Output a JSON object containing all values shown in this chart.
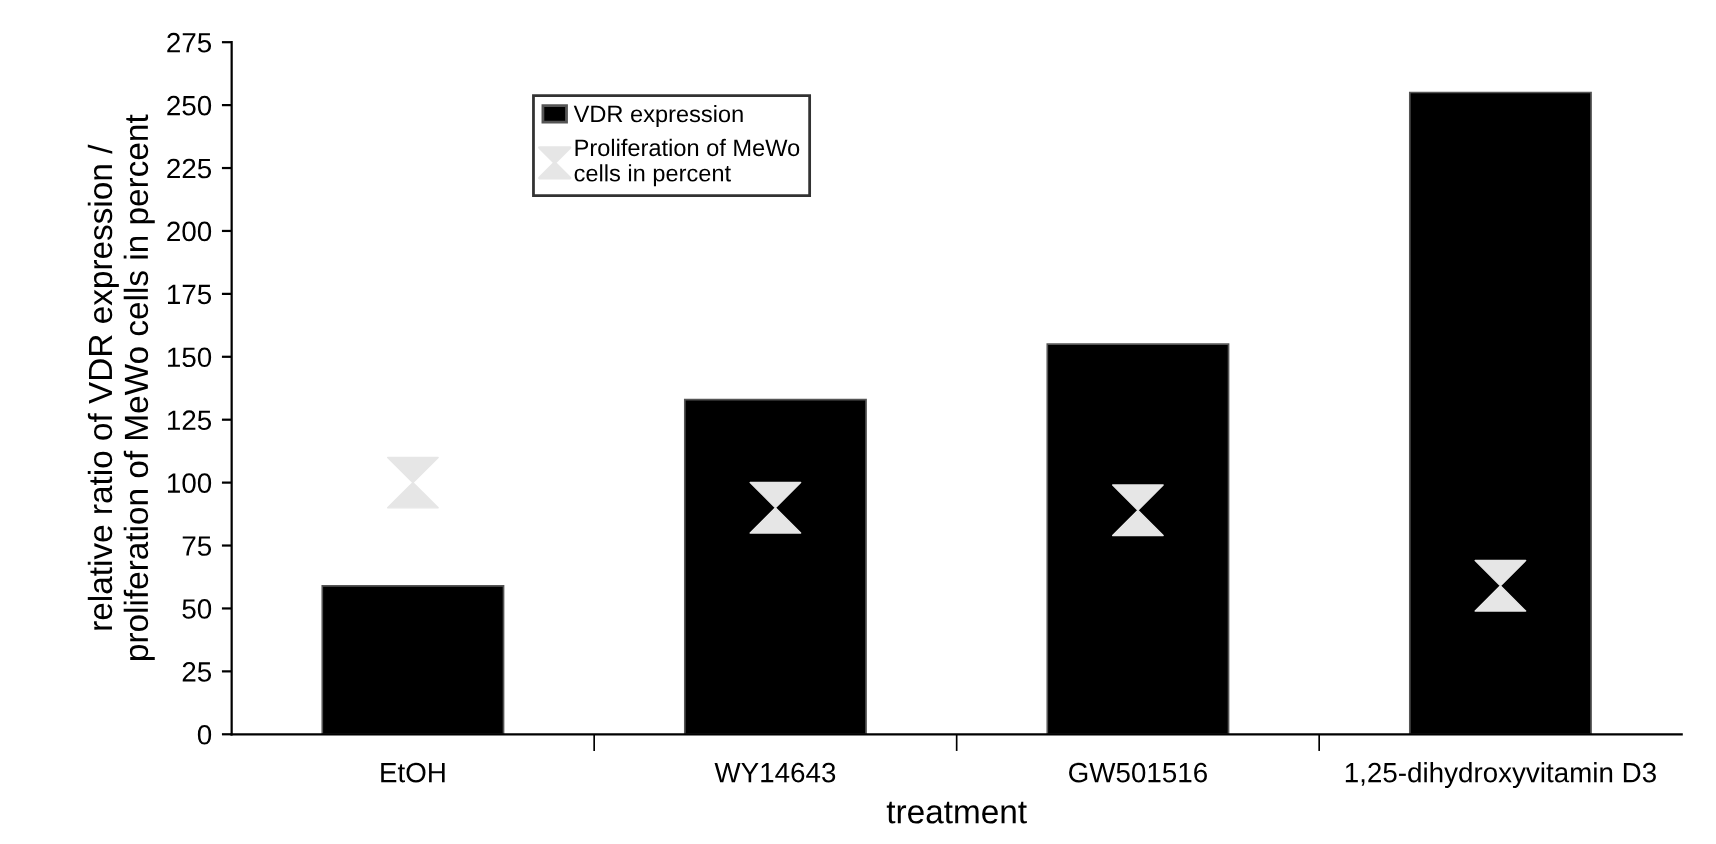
{
  "chart_data": {
    "type": "bar",
    "xlabel": "treatment",
    "ylabel": "relative ratio of VDR expression /\nproliferation of MeWo cells in percent",
    "categories": [
      "EtOH",
      "WY14643",
      "GW501516",
      "1,25-dihydroxyvitamin D3"
    ],
    "series": [
      {
        "name": "VDR expression",
        "color": "#000000",
        "values": [
          59,
          133,
          155,
          255
        ]
      },
      {
        "name": "Proliferation of MeWo\ncells in percent",
        "type": "scatter",
        "color": "#e6e6e6",
        "values": [
          100,
          90,
          89,
          59
        ]
      }
    ],
    "ylim": [
      0,
      275
    ],
    "yticks": [
      0,
      25,
      50,
      75,
      100,
      125,
      150,
      175,
      200,
      225,
      250,
      275
    ],
    "grid": false,
    "legend": "top left"
  }
}
